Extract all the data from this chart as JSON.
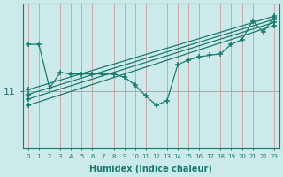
{
  "xlabel": "Humidex (Indice chaleur)",
  "bg_color": "#cceaea",
  "grid_color": "#c8a0a0",
  "hline_color": "#aaaaaa",
  "line_color": "#1a7a6e",
  "xlim": [
    -0.5,
    23.5
  ],
  "ylim": [
    9.2,
    13.8
  ],
  "ytick_val": 11,
  "xticks": [
    0,
    1,
    2,
    3,
    4,
    5,
    6,
    7,
    8,
    9,
    10,
    11,
    12,
    13,
    14,
    15,
    16,
    17,
    18,
    19,
    20,
    21,
    22,
    23
  ],
  "lines": [
    {
      "x": [
        0,
        1,
        2,
        3,
        4,
        5,
        6,
        7,
        8,
        9,
        10,
        11,
        12,
        13,
        14,
        15,
        16,
        17,
        18,
        19,
        20,
        21,
        22,
        23
      ],
      "y": [
        12.5,
        12.5,
        11.1,
        11.6,
        11.55,
        11.55,
        11.55,
        11.55,
        11.55,
        11.45,
        11.2,
        10.85,
        10.55,
        10.7,
        11.85,
        12.0,
        12.1,
        12.15,
        12.2,
        12.5,
        12.65,
        13.25,
        12.9,
        13.35
      ]
    },
    {
      "x": [
        0,
        23
      ],
      "y": [
        10.55,
        13.1
      ]
    },
    {
      "x": [
        0,
        23
      ],
      "y": [
        10.75,
        13.2
      ]
    },
    {
      "x": [
        0,
        23
      ],
      "y": [
        10.9,
        13.3
      ]
    },
    {
      "x": [
        0,
        23
      ],
      "y": [
        11.05,
        13.4
      ]
    }
  ]
}
